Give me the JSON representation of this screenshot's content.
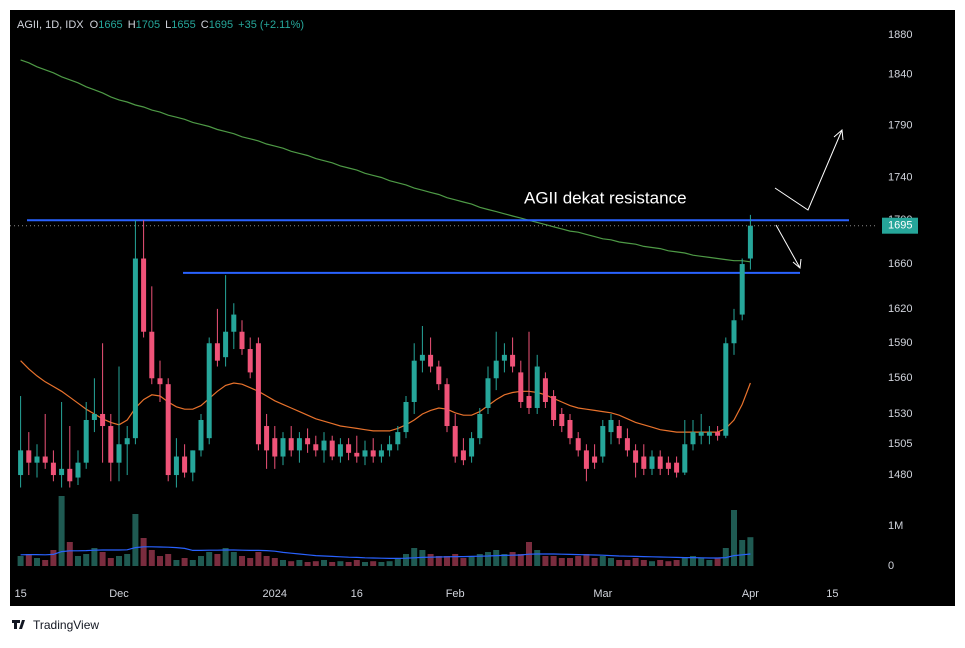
{
  "chart_data": {
    "type": "candlestick",
    "title": "AGII, 1D, IDX",
    "ohlc_letters": [
      "O",
      "H",
      "L",
      "C"
    ],
    "change": "+35 (+2.11%)",
    "annotation": "AGII dekat resistance",
    "brand": "TradingView",
    "log_scale": true,
    "up_color": "#26a69a",
    "down_color": "#ef5378",
    "up_volume_color": "#1f5a52",
    "down_volume_color": "#7a2c3e",
    "ma_long_color": "#4e9a46",
    "ma_short_color": "#e8722c",
    "volume_ma_color": "#2962ff",
    "hline_color": "#2962ff",
    "ylim": [
      1379,
      1906
    ],
    "yticks": [
      1880,
      1840,
      1790,
      1740,
      1700,
      1660,
      1620,
      1590,
      1560,
      1530,
      1505,
      1480
    ],
    "volume_lim": [
      0,
      2900000
    ],
    "volume_ticks": [
      0,
      {
        "value": 1000000,
        "label": "1M"
      }
    ],
    "hlines": [
      1700,
      1652
    ],
    "categories": [
      "15",
      null,
      null,
      null,
      null,
      null,
      null,
      null,
      null,
      null,
      null,
      null,
      "Dec",
      null,
      null,
      null,
      null,
      null,
      null,
      null,
      null,
      null,
      null,
      null,
      null,
      null,
      null,
      null,
      null,
      null,
      null,
      "2024",
      null,
      null,
      null,
      null,
      null,
      null,
      null,
      null,
      null,
      "16",
      null,
      null,
      null,
      null,
      null,
      null,
      null,
      null,
      null,
      null,
      null,
      "Feb",
      null,
      null,
      null,
      null,
      null,
      null,
      null,
      null,
      null,
      null,
      null,
      null,
      null,
      null,
      null,
      null,
      null,
      "Mar",
      null,
      null,
      null,
      null,
      null,
      null,
      null,
      null,
      null,
      null,
      null,
      null,
      null,
      null,
      null,
      null,
      null,
      "Apr",
      null,
      null,
      null,
      null,
      null,
      null,
      null,
      null,
      null,
      "15",
      null,
      null,
      null,
      null,
      null
    ],
    "open": [
      1480,
      1500,
      1490,
      1495,
      1490,
      1480,
      1485,
      1478,
      1490,
      1525,
      1530,
      1520,
      1490,
      1505,
      1510,
      1665,
      1600,
      1560,
      1555,
      1480,
      1495,
      1482,
      1500,
      1510,
      1590,
      1578,
      1600,
      1600,
      1585,
      1590,
      1520,
      1510,
      1495,
      1510,
      1500,
      1510,
      1505,
      1500,
      1508,
      1495,
      1505,
      1498,
      1495,
      1500,
      1495,
      1500,
      1505,
      1515,
      1540,
      1575,
      1580,
      1570,
      1555,
      1520,
      1500,
      1495,
      1510,
      1535,
      1560,
      1575,
      1580,
      1565,
      1545,
      1535,
      1560,
      1545,
      1530,
      1525,
      1510,
      1500,
      1495,
      1495,
      1515,
      1520,
      1510,
      1500,
      1495,
      1485,
      1495,
      1490,
      1490,
      1482,
      1505,
      1512,
      1512,
      1515,
      1512,
      1590,
      1615,
      1665,
      null,
      null,
      null,
      null,
      null,
      null,
      null,
      null,
      null,
      null,
      null,
      null,
      null,
      null,
      null
    ],
    "high": [
      1545,
      1515,
      1505,
      1530,
      1500,
      1540,
      1520,
      1500,
      1540,
      1560,
      1590,
      1530,
      1570,
      1520,
      1700,
      1700,
      1640,
      1575,
      1560,
      1510,
      1505,
      1500,
      1530,
      1595,
      1620,
      1650,
      1625,
      1610,
      1595,
      1595,
      1530,
      1520,
      1515,
      1520,
      1515,
      1518,
      1512,
      1515,
      1512,
      1510,
      1510,
      1512,
      1508,
      1510,
      1505,
      1512,
      1520,
      1545,
      1590,
      1605,
      1595,
      1575,
      1560,
      1530,
      1510,
      1515,
      1535,
      1570,
      1600,
      1590,
      1595,
      1575,
      1600,
      1580,
      1565,
      1550,
      1535,
      1530,
      1515,
      1505,
      1505,
      1525,
      1530,
      1525,
      1518,
      1505,
      1505,
      1500,
      1500,
      1495,
      1495,
      1525,
      1525,
      1530,
      1520,
      1520,
      1595,
      1620,
      1665,
      1705,
      null,
      null,
      null,
      null,
      null,
      null,
      null,
      null,
      null,
      null,
      null,
      null,
      null,
      null,
      null
    ],
    "low": [
      1470,
      1480,
      1478,
      1485,
      1475,
      1470,
      1470,
      1472,
      1485,
      1515,
      1490,
      1475,
      1475,
      1480,
      1505,
      1595,
      1555,
      1540,
      1475,
      1470,
      1478,
      1475,
      1495,
      1505,
      1570,
      1570,
      1585,
      1580,
      1560,
      1500,
      1485,
      1485,
      1488,
      1495,
      1490,
      1498,
      1495,
      1490,
      1492,
      1490,
      1492,
      1490,
      1488,
      1490,
      1490,
      1495,
      1500,
      1510,
      1530,
      1565,
      1565,
      1550,
      1515,
      1490,
      1488,
      1490,
      1505,
      1530,
      1550,
      1565,
      1565,
      1535,
      1530,
      1530,
      1535,
      1520,
      1515,
      1505,
      1495,
      1475,
      1485,
      1490,
      1505,
      1505,
      1495,
      1478,
      1480,
      1480,
      1480,
      1480,
      1478,
      1480,
      1500,
      1505,
      1505,
      1508,
      1510,
      1580,
      1610,
      1655,
      null,
      null,
      null,
      null,
      null,
      null,
      null,
      null,
      null,
      null,
      null,
      null,
      null,
      null,
      null
    ],
    "close": [
      1500,
      1490,
      1495,
      1490,
      1480,
      1485,
      1475,
      1490,
      1525,
      1530,
      1520,
      1490,
      1505,
      1510,
      1665,
      1600,
      1560,
      1555,
      1480,
      1495,
      1482,
      1500,
      1525,
      1590,
      1575,
      1600,
      1615,
      1585,
      1565,
      1505,
      1500,
      1495,
      1510,
      1500,
      1510,
      1505,
      1500,
      1508,
      1495,
      1505,
      1498,
      1495,
      1500,
      1495,
      1500,
      1505,
      1515,
      1540,
      1575,
      1580,
      1570,
      1555,
      1520,
      1495,
      1492,
      1510,
      1530,
      1560,
      1575,
      1580,
      1570,
      1540,
      1535,
      1570,
      1540,
      1525,
      1520,
      1510,
      1500,
      1485,
      1490,
      1520,
      1525,
      1510,
      1500,
      1490,
      1485,
      1495,
      1485,
      1485,
      1482,
      1505,
      1515,
      1515,
      1515,
      1512,
      1590,
      1610,
      1660,
      1695,
      null,
      null,
      null,
      null,
      null,
      null,
      null,
      null,
      null,
      null,
      null,
      null,
      null,
      null,
      null
    ],
    "volume": [
      250000,
      300000,
      200000,
      150000,
      400000,
      1750000,
      600000,
      250000,
      300000,
      450000,
      350000,
      200000,
      250000,
      300000,
      1300000,
      700000,
      400000,
      250000,
      300000,
      150000,
      200000,
      150000,
      250000,
      350000,
      300000,
      450000,
      350000,
      250000,
      200000,
      350000,
      250000,
      200000,
      150000,
      120000,
      150000,
      100000,
      120000,
      150000,
      100000,
      120000,
      100000,
      150000,
      100000,
      120000,
      100000,
      120000,
      200000,
      300000,
      450000,
      400000,
      300000,
      250000,
      250000,
      300000,
      200000,
      250000,
      300000,
      350000,
      400000,
      300000,
      350000,
      300000,
      600000,
      400000,
      250000,
      250000,
      200000,
      200000,
      250000,
      300000,
      200000,
      250000,
      200000,
      150000,
      150000,
      200000,
      150000,
      120000,
      150000,
      120000,
      150000,
      200000,
      250000,
      200000,
      150000,
      200000,
      450000,
      1400000,
      650000,
      720000,
      null,
      null,
      null,
      null,
      null,
      null,
      null,
      null,
      null,
      null,
      null,
      null,
      null,
      null,
      null
    ],
    "ma_long": [
      1855,
      1852,
      1848,
      1845,
      1842,
      1838,
      1835,
      1832,
      1828,
      1825,
      1822,
      1818,
      1815,
      1813,
      1810,
      1808,
      1805,
      1803,
      1800,
      1798,
      1796,
      1793,
      1791,
      1789,
      1786,
      1784,
      1782,
      1779,
      1777,
      1775,
      1772,
      1770,
      1768,
      1765,
      1763,
      1761,
      1758,
      1756,
      1754,
      1751,
      1749,
      1747,
      1744,
      1742,
      1740,
      1737,
      1735,
      1733,
      1730,
      1728,
      1726,
      1724,
      1721,
      1719,
      1717,
      1715,
      1712,
      1710,
      1708,
      1706,
      1704,
      1702,
      1700,
      1698,
      1696,
      1694,
      1692,
      1690,
      1689,
      1687,
      1685,
      1683,
      1682,
      1680,
      1679,
      1678,
      1676,
      1675,
      1674,
      1672,
      1671,
      1670,
      1668,
      1667,
      1666,
      1665,
      1664,
      1663,
      1663,
      1662,
      null,
      null,
      null,
      null,
      null,
      null,
      null,
      null,
      null,
      null,
      null,
      null,
      null,
      null,
      null
    ],
    "ma_short": [
      1575,
      1568,
      1562,
      1557,
      1553,
      1549,
      1544,
      1539,
      1534,
      1530,
      1526,
      1523,
      1521,
      1525,
      1535,
      1542,
      1546,
      1545,
      1540,
      1536,
      1534,
      1534,
      1537,
      1543,
      1549,
      1554,
      1556,
      1555,
      1552,
      1549,
      1545,
      1541,
      1538,
      1535,
      1532,
      1529,
      1526,
      1524,
      1522,
      1520,
      1519,
      1518,
      1517,
      1516,
      1516,
      1516,
      1518,
      1521,
      1525,
      1530,
      1533,
      1535,
      1534,
      1531,
      1529,
      1529,
      1532,
      1537,
      1542,
      1546,
      1548,
      1549,
      1549,
      1548,
      1546,
      1543,
      1540,
      1537,
      1535,
      1534,
      1533,
      1532,
      1531,
      1529,
      1526,
      1523,
      1521,
      1519,
      1517,
      1516,
      1515,
      1515,
      1515,
      1515,
      1515,
      1515,
      1518,
      1525,
      1538,
      1556,
      null,
      null,
      null,
      null,
      null,
      null,
      null,
      null,
      null,
      null,
      null,
      null,
      null,
      null,
      null
    ],
    "volume_ma": [
      280000,
      285000,
      285000,
      280000,
      290000,
      360000,
      380000,
      380000,
      385000,
      395000,
      400000,
      400000,
      400000,
      405000,
      460000,
      480000,
      480000,
      475000,
      470000,
      460000,
      440000,
      390000,
      390000,
      395000,
      395000,
      400000,
      400000,
      395000,
      390000,
      390000,
      385000,
      370000,
      340000,
      320000,
      300000,
      280000,
      260000,
      250000,
      240000,
      230000,
      220000,
      215000,
      205000,
      200000,
      195000,
      190000,
      190000,
      195000,
      205000,
      215000,
      220000,
      225000,
      230000,
      235000,
      235000,
      240000,
      245000,
      250000,
      260000,
      265000,
      270000,
      275000,
      295000,
      300000,
      300000,
      300000,
      295000,
      290000,
      285000,
      280000,
      275000,
      270000,
      260000,
      250000,
      245000,
      240000,
      235000,
      230000,
      225000,
      220000,
      215000,
      210000,
      210000,
      205000,
      200000,
      200000,
      210000,
      260000,
      280000,
      300000,
      null,
      null,
      null,
      null,
      null,
      null,
      null,
      null,
      null,
      null,
      null,
      null,
      null,
      null,
      null
    ]
  }
}
